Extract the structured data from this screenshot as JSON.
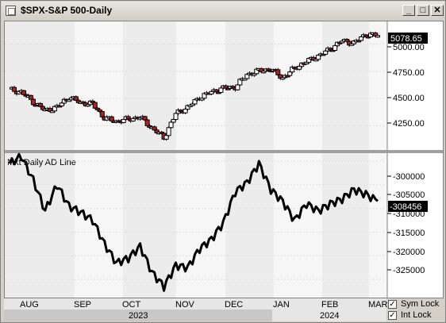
{
  "window": {
    "title": "$SPX-S&P 500-Daily",
    "min_glyph": "_",
    "max_glyph": "□",
    "close_glyph": "✕"
  },
  "price_panel": {
    "last_value": "5078.65",
    "price_axis": [
      "5000.00",
      "4750.00",
      "4500.00",
      "4250.00"
    ],
    "colors": {
      "up_candle": "#ffffff",
      "down_candle": "#b22222"
    }
  },
  "ad_panel": {
    "label": "Mkt Daily AD Line",
    "last_value": "-308456",
    "value_axis": [
      "-300000",
      "-305000",
      "-310000",
      "-315000",
      "-320000",
      "-325000"
    ]
  },
  "time_axis": {
    "months": [
      "AUG",
      "SEP",
      "OCT",
      "NOV",
      "DEC",
      "JAN",
      "FEB",
      "MAR"
    ],
    "years": [
      "2023",
      "2024"
    ]
  },
  "options": {
    "sym_lock": {
      "label": "Sym Lock",
      "checked": true,
      "glyph": "✓"
    },
    "int_lock": {
      "label": "Int Lock",
      "checked": true,
      "glyph": "✓"
    }
  },
  "chart_data": [
    {
      "type": "candlestick",
      "title": "$SPX-S&P 500-Daily",
      "x": [
        "2023-07-24",
        "2023-07-31",
        "2023-08-07",
        "2023-08-14",
        "2023-08-21",
        "2023-08-28",
        "2023-09-04",
        "2023-09-11",
        "2023-09-18",
        "2023-09-25",
        "2023-10-02",
        "2023-10-09",
        "2023-10-16",
        "2023-10-23",
        "2023-10-30",
        "2023-11-06",
        "2023-11-13",
        "2023-11-20",
        "2023-11-27",
        "2023-12-04",
        "2023-12-11",
        "2023-12-18",
        "2023-12-26",
        "2024-01-02",
        "2024-01-08",
        "2024-01-16",
        "2024-01-22",
        "2024-01-29",
        "2024-02-05",
        "2024-02-12",
        "2024-02-20",
        "2024-02-26"
      ],
      "close": [
        4582,
        4560,
        4470,
        4390,
        4420,
        4515,
        4460,
        4450,
        4320,
        4290,
        4310,
        4330,
        4230,
        4140,
        4360,
        4420,
        4510,
        4560,
        4595,
        4605,
        4720,
        4755,
        4770,
        4690,
        4780,
        4840,
        4890,
        4955,
        5030,
        5010,
        5090,
        5078.65
      ],
      "ylim": [
        4100,
        5150
      ]
    },
    {
      "type": "line",
      "title": "Mkt Daily AD Line",
      "x": [
        "2023-07-24",
        "2023-07-31",
        "2023-08-07",
        "2023-08-14",
        "2023-08-21",
        "2023-08-28",
        "2023-09-04",
        "2023-09-11",
        "2023-09-18",
        "2023-09-25",
        "2023-10-02",
        "2023-10-09",
        "2023-10-16",
        "2023-10-23",
        "2023-10-30",
        "2023-11-06",
        "2023-11-13",
        "2023-11-20",
        "2023-11-27",
        "2023-12-04",
        "2023-12-11",
        "2023-12-18",
        "2023-12-26",
        "2024-01-02",
        "2024-01-08",
        "2024-01-16",
        "2024-01-22",
        "2024-01-29",
        "2024-02-05",
        "2024-02-12",
        "2024-02-20",
        "2024-02-26"
      ],
      "values": [
        -300500,
        -299000,
        -304000,
        -310500,
        -305000,
        -309500,
        -310800,
        -312500,
        -317500,
        -321500,
        -320500,
        -318000,
        -323500,
        -326500,
        -322000,
        -322500,
        -318500,
        -316500,
        -313000,
        -306500,
        -304500,
        -300500,
        -306000,
        -308500,
        -312500,
        -309000,
        -310500,
        -309000,
        -308000,
        -306000,
        -307000,
        -308456
      ],
      "ylim": [
        -327500,
        -299000
      ]
    }
  ]
}
